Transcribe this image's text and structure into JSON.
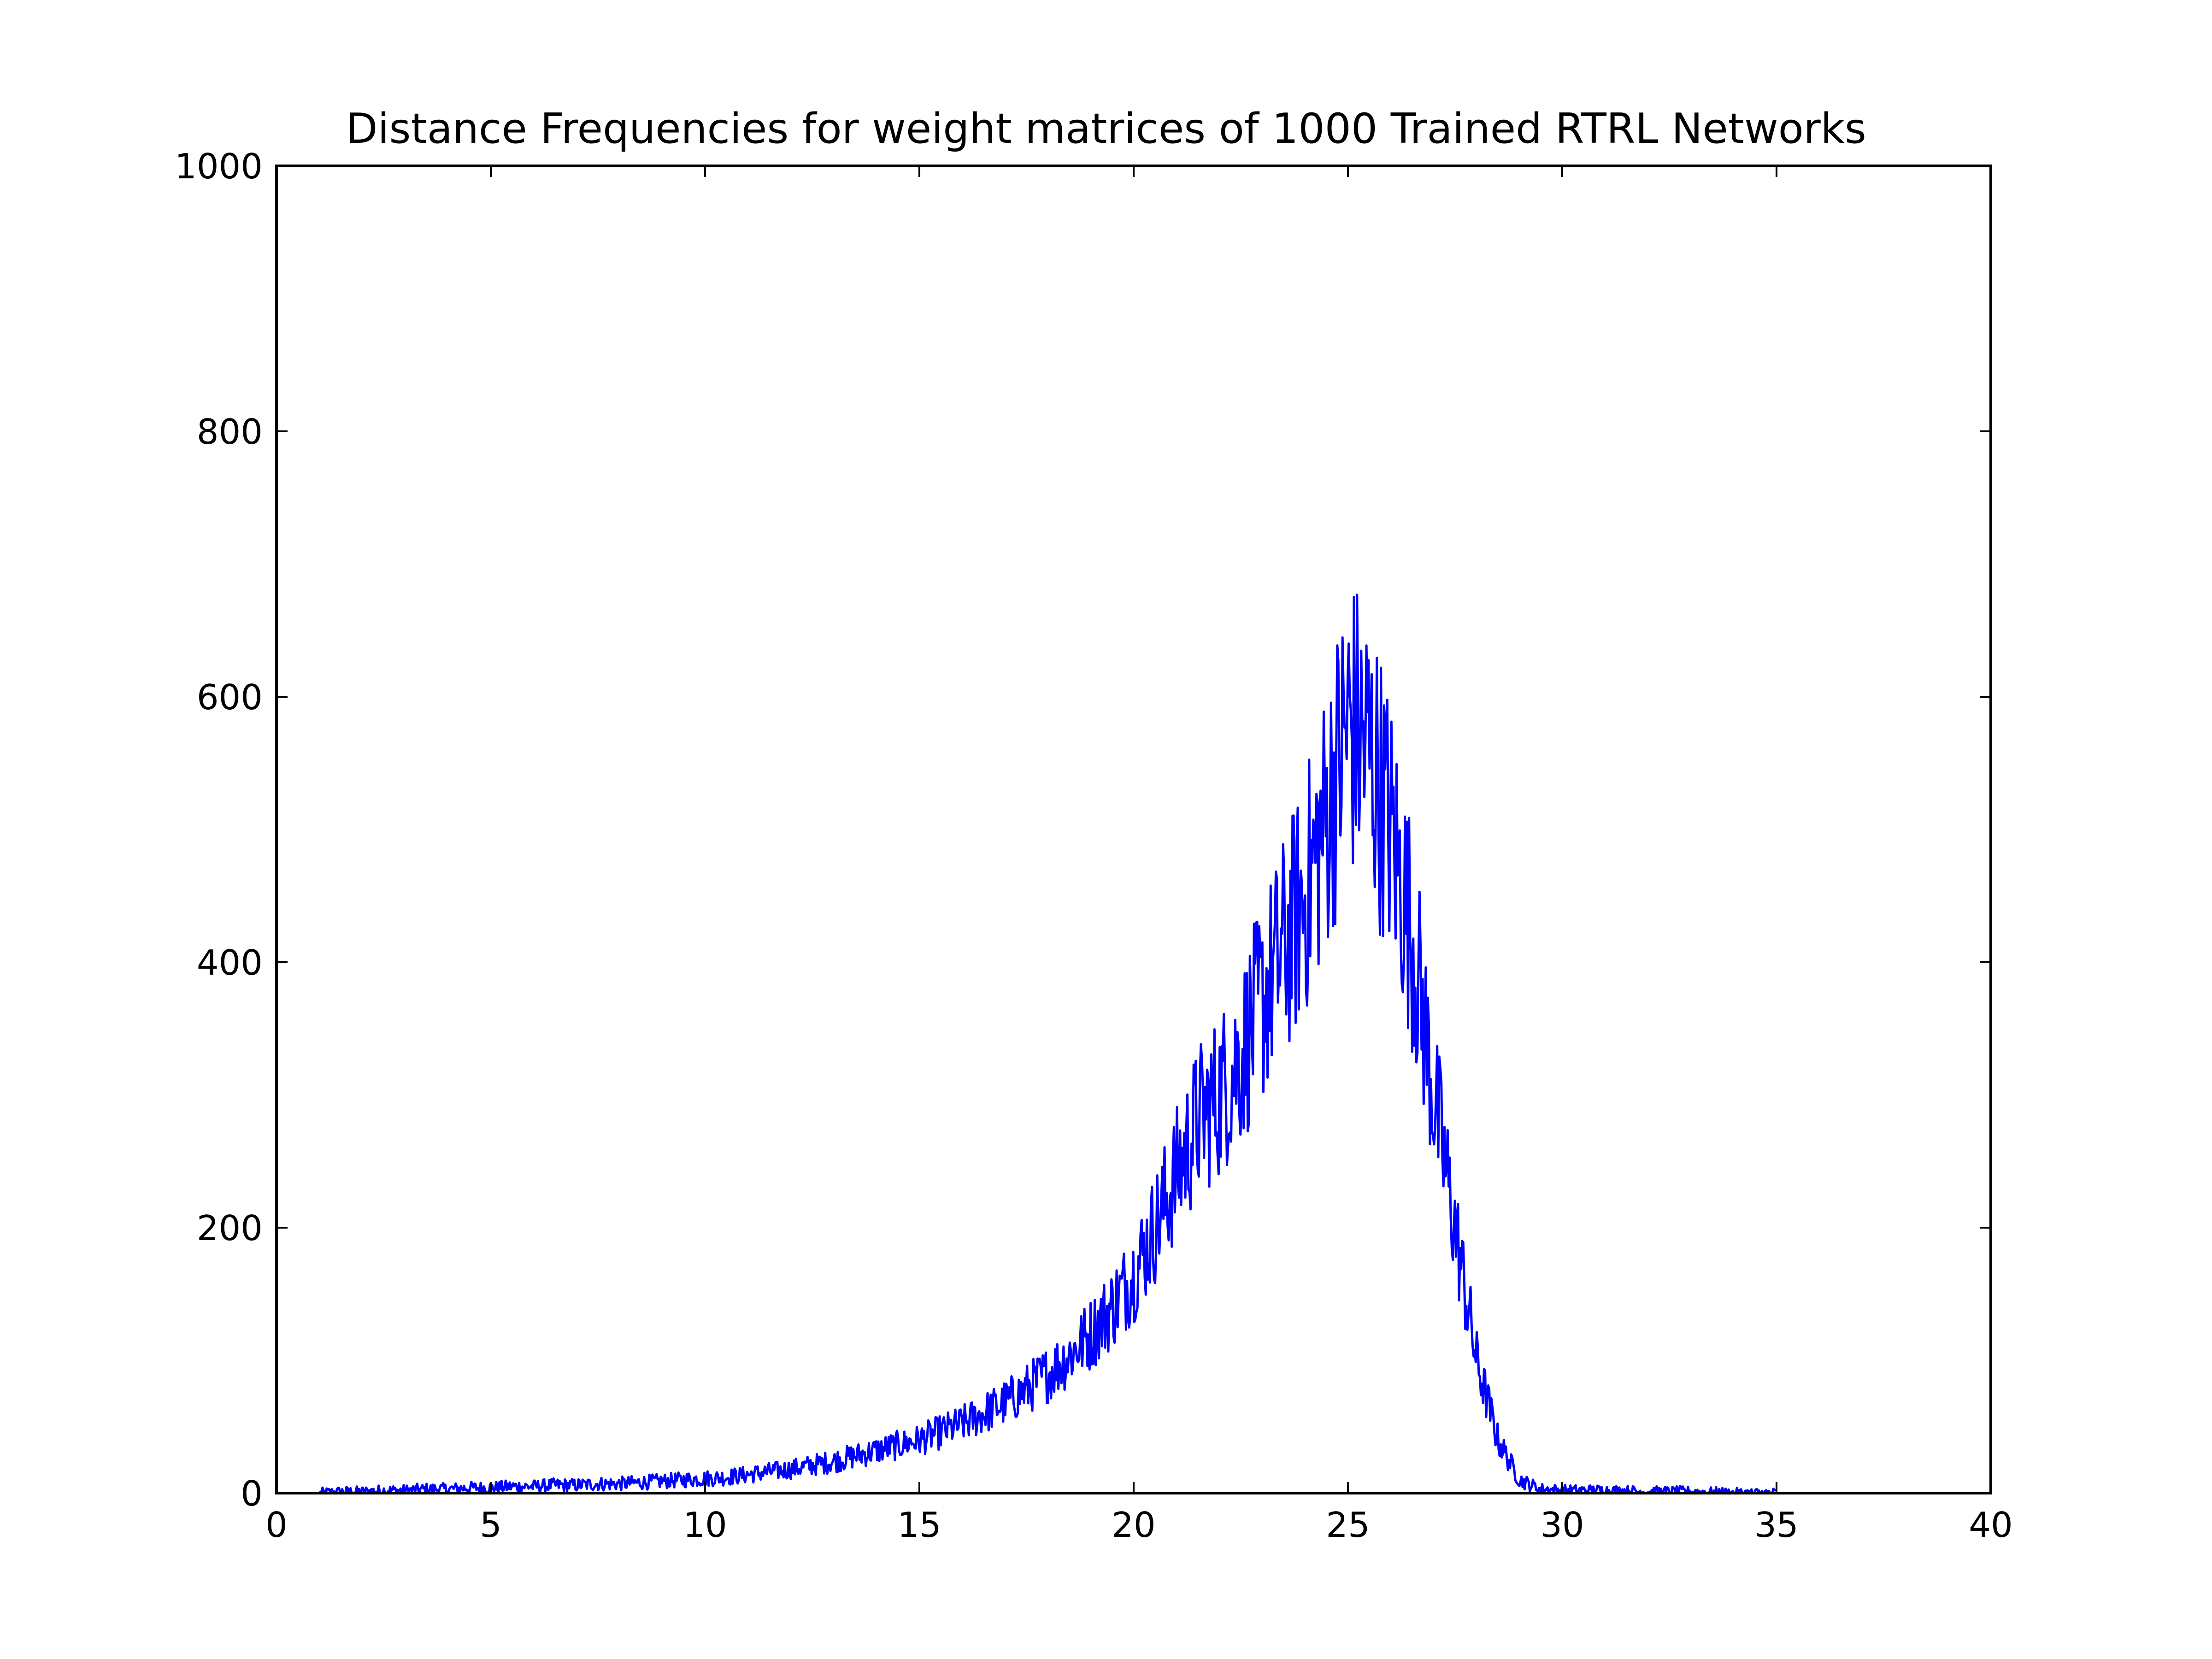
{
  "chart_data": {
    "type": "line",
    "title": "Distance Frequencies for weight matrices of 1000 Trained RTRL Networks",
    "xlabel": "",
    "ylabel": "",
    "xlim": [
      0,
      40
    ],
    "ylim": [
      0,
      1000
    ],
    "xticks": [
      0,
      5,
      10,
      15,
      20,
      25,
      30,
      35,
      40
    ],
    "xtick_labels": [
      "0",
      "5",
      "10",
      "15",
      "20",
      "25",
      "30",
      "35",
      "40"
    ],
    "yticks": [
      0,
      200,
      400,
      600,
      800,
      1000
    ],
    "ytick_labels": [
      "0",
      "200",
      "400",
      "600",
      "800",
      "1000"
    ],
    "grid": false,
    "legend": "none",
    "series": [
      {
        "color": "#0000ff",
        "x": [
          1,
          1.5,
          2,
          2.5,
          3,
          3.5,
          4,
          4.5,
          5,
          5.5,
          6,
          6.5,
          7,
          7.5,
          8,
          8.5,
          9,
          9.5,
          10,
          10.5,
          11,
          11.5,
          12,
          12.5,
          13,
          13.5,
          14,
          14.5,
          15,
          15.5,
          16,
          16.5,
          17,
          17.5,
          18,
          18.5,
          19,
          19.5,
          20,
          20.5,
          21,
          21.5,
          22,
          22.5,
          23,
          23.5,
          24,
          24.5,
          25,
          25.5,
          26,
          26.5,
          27,
          27.5,
          28,
          28.5,
          29,
          29.5,
          30,
          31,
          32,
          33,
          34,
          35
        ],
        "y": [
          0,
          1,
          1,
          2,
          2,
          3,
          3,
          4,
          4,
          5,
          5,
          6,
          6,
          7,
          7,
          8,
          9,
          10,
          11,
          12,
          14,
          16,
          18,
          21,
          24,
          28,
          32,
          36,
          40,
          46,
          52,
          60,
          68,
          78,
          90,
          104,
          120,
          140,
          165,
          200,
          240,
          280,
          300,
          330,
          370,
          410,
          450,
          510,
          580,
          560,
          500,
          420,
          300,
          200,
          100,
          40,
          10,
          3,
          2,
          2,
          1,
          1,
          0,
          0
        ]
      }
    ]
  }
}
